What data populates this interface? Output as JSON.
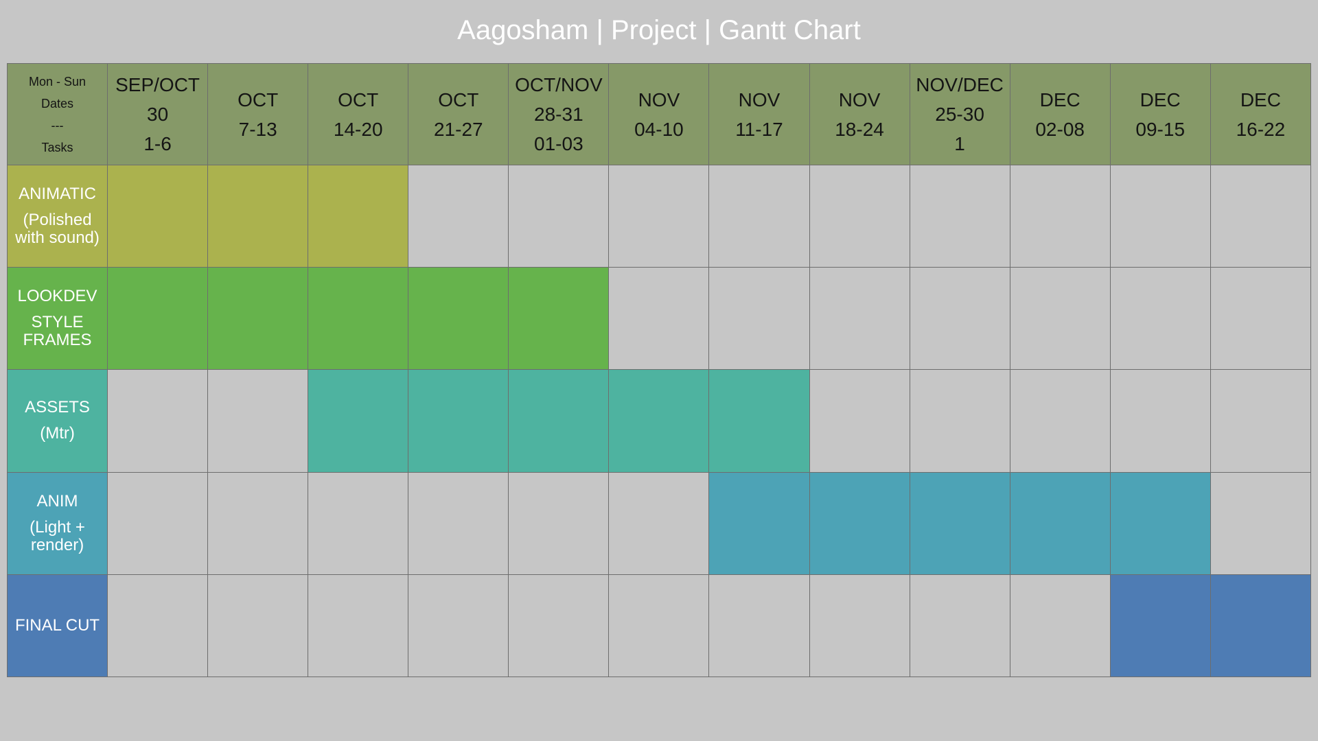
{
  "title": "Aagosham | Project | Gantt Chart",
  "corner": {
    "line1": "Mon - Sun",
    "line2": "Dates",
    "line3": "---",
    "line4": "Tasks"
  },
  "chart_data": {
    "type": "table",
    "title": "Aagosham | Project | Gantt Chart",
    "weeks": [
      {
        "lines": [
          "SEP/OCT",
          "30",
          "1-6"
        ]
      },
      {
        "lines": [
          "OCT",
          "7-13"
        ]
      },
      {
        "lines": [
          "OCT",
          "14-20"
        ]
      },
      {
        "lines": [
          "OCT",
          "21-27"
        ]
      },
      {
        "lines": [
          "OCT/NOV",
          "28-31",
          "01-03"
        ]
      },
      {
        "lines": [
          "NOV",
          "04-10"
        ]
      },
      {
        "lines": [
          "NOV",
          "11-17"
        ]
      },
      {
        "lines": [
          "NOV",
          "18-24"
        ]
      },
      {
        "lines": [
          "NOV/DEC",
          "25-30",
          "1"
        ]
      },
      {
        "lines": [
          "DEC",
          "02-08"
        ]
      },
      {
        "lines": [
          "DEC",
          "09-15"
        ]
      },
      {
        "lines": [
          "DEC",
          "16-22"
        ]
      }
    ],
    "tasks": [
      {
        "label1": "ANIMATIC",
        "label2": [
          "(Polished",
          "with sound)"
        ],
        "start_week": 1,
        "end_week": 3,
        "color": "#abb24e"
      },
      {
        "label1": "LOOKDEV",
        "label2": [
          "STYLE",
          "FRAMES"
        ],
        "start_week": 1,
        "end_week": 5,
        "color": "#66b34c"
      },
      {
        "label1": "ASSETS",
        "label2": [
          "(Mtr)"
        ],
        "start_week": 3,
        "end_week": 7,
        "color": "#4eb3a0"
      },
      {
        "label1": "ANIM",
        "label2": [
          "(Light +",
          "render)"
        ],
        "start_week": 7,
        "end_week": 11,
        "color": "#4da3b6"
      },
      {
        "label1": "FINAL CUT",
        "label2": [],
        "start_week": 11,
        "end_week": 12,
        "color": "#4e7cb4"
      }
    ],
    "empty_cell_color": "#c6c6c6",
    "header_color": "#869968"
  }
}
